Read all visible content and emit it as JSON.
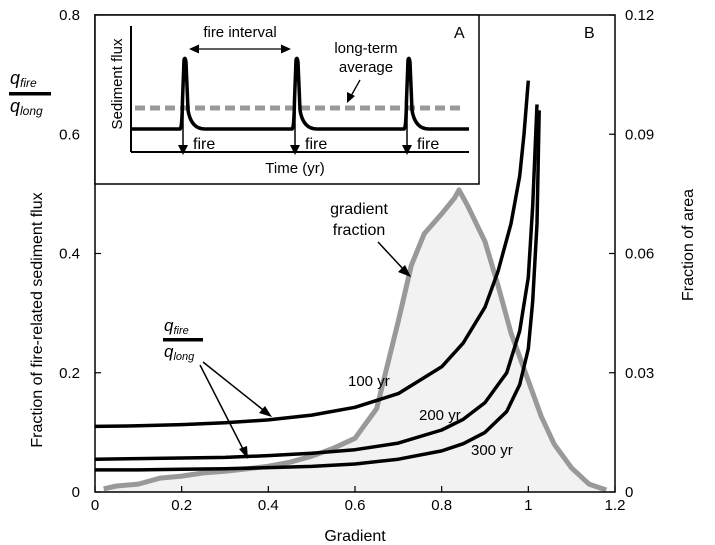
{
  "chart_data": {
    "type": "line",
    "panel_b_label": "B",
    "xlabel": "Gradient",
    "ylabel_left": "Fraction of fire-related sediment flux",
    "ylabel_right": "Fraction of area",
    "xlim": [
      0,
      1.2
    ],
    "ylim_left": [
      0,
      0.8
    ],
    "ylim_right": [
      0,
      0.12
    ],
    "x_ticks": [
      "0",
      "0.2",
      "0.4",
      "0.6",
      "0.8",
      "1",
      "1.2"
    ],
    "y_left_ticks": [
      "0",
      "0.2",
      "0.4",
      "0.6",
      "0.8"
    ],
    "y_right_ticks": [
      "0",
      "0.03",
      "0.06",
      "0.09",
      "0.12"
    ],
    "ratio_label": {
      "numerator": "q",
      "numerator_sub": "fire",
      "denominator": "q",
      "denominator_sub": "long"
    },
    "series": [
      {
        "name": "100 yr",
        "axis": "left",
        "color": "#000000",
        "x": [
          0,
          0.1,
          0.2,
          0.3,
          0.4,
          0.5,
          0.6,
          0.7,
          0.8,
          0.85,
          0.9,
          0.93,
          0.96,
          0.98,
          0.99,
          1.0
        ],
        "y": [
          0.11,
          0.111,
          0.113,
          0.116,
          0.121,
          0.129,
          0.142,
          0.165,
          0.21,
          0.25,
          0.31,
          0.37,
          0.45,
          0.53,
          0.6,
          0.69
        ]
      },
      {
        "name": "200 yr",
        "axis": "left",
        "color": "#000000",
        "x": [
          0,
          0.1,
          0.2,
          0.3,
          0.4,
          0.5,
          0.6,
          0.7,
          0.8,
          0.85,
          0.9,
          0.95,
          0.98,
          1.0,
          1.01,
          1.02
        ],
        "y": [
          0.055,
          0.056,
          0.057,
          0.058,
          0.061,
          0.065,
          0.071,
          0.082,
          0.104,
          0.122,
          0.15,
          0.2,
          0.27,
          0.36,
          0.48,
          0.65
        ]
      },
      {
        "name": "300 yr",
        "axis": "left",
        "color": "#000000",
        "x": [
          0,
          0.1,
          0.2,
          0.3,
          0.4,
          0.5,
          0.6,
          0.7,
          0.8,
          0.85,
          0.9,
          0.95,
          0.98,
          1.0,
          1.01,
          1.02,
          1.025
        ],
        "y": [
          0.037,
          0.037,
          0.038,
          0.039,
          0.041,
          0.043,
          0.047,
          0.055,
          0.069,
          0.081,
          0.1,
          0.135,
          0.18,
          0.24,
          0.32,
          0.45,
          0.64
        ]
      },
      {
        "name": "gradient fraction",
        "axis": "right",
        "color": "#999999",
        "fill": "#f2f2f2",
        "x": [
          0.02,
          0.05,
          0.1,
          0.15,
          0.2,
          0.25,
          0.3,
          0.35,
          0.4,
          0.45,
          0.5,
          0.55,
          0.6,
          0.65,
          0.7,
          0.73,
          0.76,
          0.8,
          0.83,
          0.84,
          0.86,
          0.9,
          0.93,
          0.96,
          1.0,
          1.03,
          1.06,
          1.1,
          1.14,
          1.18
        ],
        "y": [
          0.0008,
          0.0015,
          0.002,
          0.0035,
          0.004,
          0.0048,
          0.0052,
          0.0058,
          0.0065,
          0.0075,
          0.009,
          0.011,
          0.0135,
          0.021,
          0.043,
          0.057,
          0.065,
          0.07,
          0.074,
          0.076,
          0.072,
          0.063,
          0.052,
          0.04,
          0.028,
          0.019,
          0.012,
          0.006,
          0.002,
          0.0005
        ]
      }
    ],
    "annotations": {
      "gradient_fraction": [
        "gradient",
        "fraction"
      ],
      "100 yr": "100 yr",
      "200 yr": "200 yr",
      "300 yr": "300 yr"
    },
    "inset": {
      "label": "A",
      "ylabel": "Sediment flux",
      "xlabel": "Time (yr)",
      "fire_interval_label": "fire interval",
      "long_term_average_label": [
        "long-term",
        "average"
      ],
      "fire_labels": [
        "fire",
        "fire",
        "fire"
      ]
    }
  }
}
